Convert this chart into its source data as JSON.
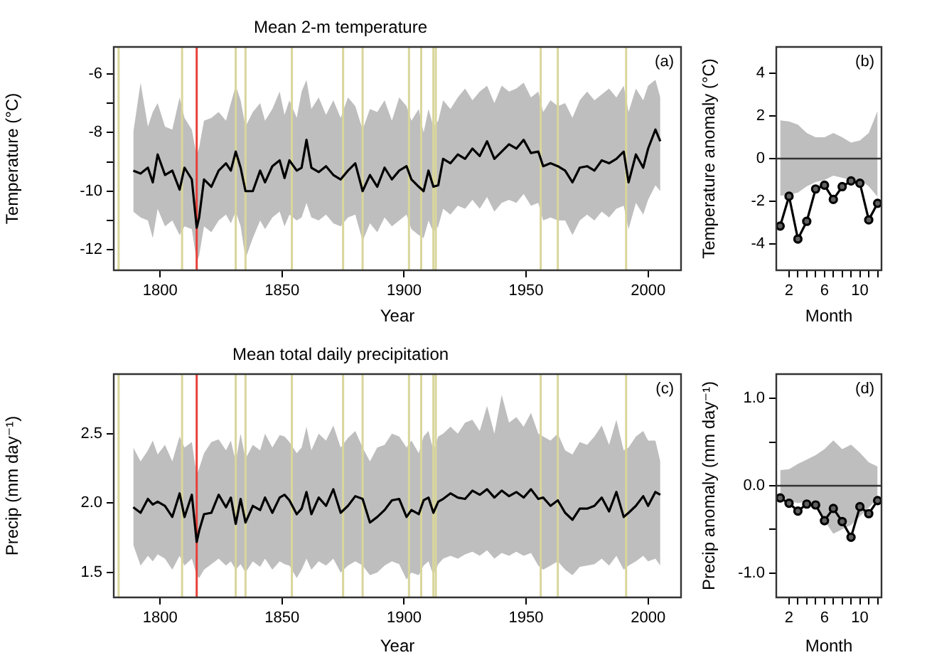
{
  "chart_data": [
    {
      "type": "line",
      "title": "Mean 2-m temperature",
      "xlabel": "Year",
      "ylabel": "Temperature (°C)",
      "xlim": [
        1781,
        2013.5
      ],
      "xticks": [
        1800,
        1850,
        1900,
        1950,
        2000
      ],
      "ylim": [
        -12.7,
        -5.08
      ],
      "yticks": [
        -12,
        {
          "value": -11,
          "label": null
        },
        -10,
        {
          "value": -9,
          "label": null
        },
        -8,
        {
          "value": -7,
          "label": null
        },
        -6
      ],
      "marker": "none",
      "annotations": [
        "(a)"
      ],
      "ref_lines": [
        {
          "axis": "x",
          "value": 1783,
          "color": "#d9d69c"
        },
        {
          "axis": "x",
          "value": 1809,
          "color": "#d9d69c"
        },
        {
          "axis": "x",
          "value": 1815,
          "color": "#e8403a"
        },
        {
          "axis": "x",
          "value": 1831,
          "color": "#d9d69c"
        },
        {
          "axis": "x",
          "value": 1835,
          "color": "#d9d69c"
        },
        {
          "axis": "x",
          "value": 1854,
          "color": "#d9d69c"
        },
        {
          "axis": "x",
          "value": 1875,
          "color": "#d9d69c"
        },
        {
          "axis": "x",
          "value": 1883,
          "color": "#d9d69c"
        },
        {
          "axis": "x",
          "value": 1902,
          "color": "#d9d69c"
        },
        {
          "axis": "x",
          "value": 1907,
          "color": "#d9d69c"
        },
        {
          "axis": "x",
          "value": 1912,
          "color": "#d9d69c"
        },
        {
          "axis": "x",
          "value": 1913,
          "color": "#d9d69c"
        },
        {
          "axis": "x",
          "value": 1956,
          "color": "#d9d69c"
        },
        {
          "axis": "x",
          "value": 1963,
          "color": "#d9d69c"
        },
        {
          "axis": "x",
          "value": 1991,
          "color": "#d9d69c"
        }
      ],
      "series": [
        {
          "color": "#000000",
          "x": [
            1789,
            1792,
            1795,
            1797,
            1799,
            1802,
            1805,
            1808,
            1810,
            1813,
            1815,
            1816,
            1818,
            1821,
            1824,
            1827,
            1829,
            1831,
            1833,
            1835,
            1838,
            1841,
            1843,
            1846,
            1849,
            1851,
            1853,
            1856,
            1858,
            1860,
            1862,
            1865,
            1868,
            1871,
            1874,
            1877,
            1880,
            1883,
            1886,
            1889,
            1892,
            1895,
            1898,
            1901,
            1903,
            1906,
            1908,
            1910,
            1912,
            1914,
            1916,
            1919,
            1922,
            1925,
            1928,
            1931,
            1934,
            1937,
            1940,
            1943,
            1946,
            1949,
            1952,
            1955,
            1957,
            1960,
            1963,
            1966,
            1969,
            1972,
            1975,
            1978,
            1981,
            1984,
            1987,
            1990,
            1992,
            1995,
            1998,
            2000,
            2003,
            2005
          ],
          "values": [
            -9.3,
            -9.4,
            -9.2,
            -9.7,
            -8.75,
            -9.45,
            -9.3,
            -9.95,
            -9.2,
            -9.6,
            -11.25,
            -10.9,
            -9.6,
            -9.85,
            -9.3,
            -9.05,
            -9.3,
            -8.65,
            -9.2,
            -10.0,
            -10.0,
            -9.3,
            -9.7,
            -9.15,
            -8.95,
            -9.55,
            -8.95,
            -9.3,
            -9.2,
            -8.25,
            -9.2,
            -9.35,
            -9.15,
            -9.45,
            -9.6,
            -9.3,
            -9.05,
            -10.0,
            -9.45,
            -9.85,
            -9.2,
            -9.6,
            -9.3,
            -9.15,
            -9.6,
            -9.85,
            -10.0,
            -9.3,
            -9.85,
            -9.8,
            -8.9,
            -9.05,
            -8.75,
            -8.9,
            -8.55,
            -8.8,
            -8.3,
            -8.9,
            -8.65,
            -8.4,
            -8.55,
            -8.25,
            -8.7,
            -8.65,
            -9.15,
            -9.05,
            -9.15,
            -9.3,
            -9.7,
            -9.2,
            -9.15,
            -9.3,
            -8.95,
            -9.05,
            -8.9,
            -8.65,
            -9.7,
            -8.75,
            -9.2,
            -8.55,
            -7.9,
            -8.3
          ],
          "upper": [
            -8.0,
            -6.3,
            -7.8,
            -7.3,
            -7.0,
            -7.8,
            -7.9,
            -6.8,
            -7.5,
            -7.9,
            -8.8,
            -8.5,
            -7.6,
            -7.5,
            -7.3,
            -7.6,
            -7.0,
            -6.4,
            -6.9,
            -7.8,
            -7.3,
            -7.0,
            -7.6,
            -7.2,
            -6.6,
            -7.4,
            -6.9,
            -7.5,
            -6.6,
            -6.2,
            -7.2,
            -6.8,
            -7.4,
            -6.9,
            -7.5,
            -6.8,
            -7.1,
            -7.9,
            -7.2,
            -7.3,
            -6.9,
            -7.6,
            -6.8,
            -7.1,
            -7.6,
            -7.2,
            -8.0,
            -7.2,
            -7.8,
            -7.6,
            -6.9,
            -7.2,
            -6.8,
            -6.5,
            -6.9,
            -6.6,
            -6.4,
            -7.0,
            -6.4,
            -6.6,
            -6.5,
            -6.3,
            -6.8,
            -6.6,
            -7.3,
            -6.9,
            -7.1,
            -7.0,
            -7.5,
            -6.9,
            -6.6,
            -6.9,
            -6.7,
            -6.5,
            -6.8,
            -6.4,
            -7.3,
            -6.5,
            -6.9,
            -6.4,
            -6.2,
            -6.8
          ],
          "lower": [
            -10.7,
            -10.9,
            -11.0,
            -11.6,
            -10.6,
            -11.2,
            -11.0,
            -11.5,
            -11.2,
            -11.3,
            -12.4,
            -12.2,
            -11.2,
            -11.4,
            -11.0,
            -10.8,
            -11.1,
            -10.7,
            -11.2,
            -12.3,
            -11.6,
            -11.0,
            -11.3,
            -10.9,
            -10.7,
            -11.2,
            -10.8,
            -11.0,
            -10.9,
            -10.4,
            -10.9,
            -11.0,
            -10.8,
            -11.1,
            -11.2,
            -10.9,
            -10.8,
            -11.7,
            -11.1,
            -11.4,
            -10.9,
            -11.2,
            -11.0,
            -10.8,
            -11.3,
            -11.5,
            -11.6,
            -11.0,
            -11.4,
            -11.2,
            -10.6,
            -10.8,
            -10.5,
            -10.6,
            -10.3,
            -10.6,
            -10.2,
            -10.7,
            -10.4,
            -10.3,
            -10.4,
            -10.1,
            -10.5,
            -10.4,
            -11.0,
            -10.9,
            -11.0,
            -11.0,
            -11.5,
            -11.0,
            -10.8,
            -11.0,
            -10.7,
            -10.9,
            -10.6,
            -10.5,
            -11.3,
            -10.4,
            -10.8,
            -10.3,
            -9.8,
            -10.0
          ]
        }
      ]
    },
    {
      "type": "line",
      "xlabel": "Month",
      "ylabel": "Temperature anomaly (°C)",
      "xlim": [
        0.56,
        12.44
      ],
      "xticks": [
        2,
        {
          "value": 3,
          "label": null
        },
        {
          "value": 4,
          "label": null
        },
        {
          "value": 5,
          "label": null
        },
        6,
        {
          "value": 7,
          "label": null
        },
        {
          "value": 8,
          "label": null
        },
        {
          "value": 9,
          "label": null
        },
        10,
        {
          "value": 11,
          "label": null
        },
        {
          "value": 12,
          "label": null
        }
      ],
      "ylim": [
        -5.25,
        5.25
      ],
      "yticks": [
        -4,
        -2,
        0,
        2,
        4
      ],
      "marker": "circle",
      "annotations": [
        "(b)"
      ],
      "ref_lines": [
        {
          "axis": "y",
          "value": 0,
          "color": "#333333"
        }
      ],
      "series": [
        {
          "color": "#000000",
          "x": [
            1,
            2,
            3,
            4,
            5,
            6,
            7,
            8,
            9,
            10,
            11,
            12
          ],
          "values": [
            -3.17,
            -1.77,
            -3.78,
            -2.95,
            -1.43,
            -1.25,
            -1.92,
            -1.32,
            -1.05,
            -1.16,
            -2.88,
            -2.1
          ],
          "upper": [
            1.8,
            1.75,
            1.6,
            1.2,
            1.0,
            1.0,
            1.2,
            1.0,
            0.75,
            0.85,
            1.2,
            2.25
          ],
          "lower": [
            -1.75,
            -1.7,
            -1.6,
            -1.3,
            -1.1,
            -1.0,
            -0.8,
            -0.9,
            -1.0,
            -1.0,
            -1.3,
            -1.8
          ]
        }
      ]
    },
    {
      "type": "line",
      "title": "Mean total daily precipitation",
      "xlabel": "Year",
      "ylabel": "Precip (mm day⁻¹)",
      "xlim": [
        1781,
        2013.5
      ],
      "xticks": [
        1800,
        1850,
        1900,
        1950,
        2000
      ],
      "ylim": [
        1.32,
        2.93
      ],
      "yticks": [
        1.5,
        {
          "value": 2,
          "label": "2.0"
        },
        2.5
      ],
      "marker": "none",
      "annotations": [
        "(c)"
      ],
      "ref_lines": [
        {
          "axis": "x",
          "value": 1783,
          "color": "#d9d69c"
        },
        {
          "axis": "x",
          "value": 1809,
          "color": "#d9d69c"
        },
        {
          "axis": "x",
          "value": 1815,
          "color": "#e8403a"
        },
        {
          "axis": "x",
          "value": 1831,
          "color": "#d9d69c"
        },
        {
          "axis": "x",
          "value": 1835,
          "color": "#d9d69c"
        },
        {
          "axis": "x",
          "value": 1854,
          "color": "#d9d69c"
        },
        {
          "axis": "x",
          "value": 1875,
          "color": "#d9d69c"
        },
        {
          "axis": "x",
          "value": 1883,
          "color": "#d9d69c"
        },
        {
          "axis": "x",
          "value": 1902,
          "color": "#d9d69c"
        },
        {
          "axis": "x",
          "value": 1907,
          "color": "#d9d69c"
        },
        {
          "axis": "x",
          "value": 1912,
          "color": "#d9d69c"
        },
        {
          "axis": "x",
          "value": 1913,
          "color": "#d9d69c"
        },
        {
          "axis": "x",
          "value": 1956,
          "color": "#d9d69c"
        },
        {
          "axis": "x",
          "value": 1963,
          "color": "#d9d69c"
        },
        {
          "axis": "x",
          "value": 1991,
          "color": "#d9d69c"
        }
      ],
      "series": [
        {
          "color": "#000000",
          "x": [
            1789,
            1792,
            1795,
            1797,
            1799,
            1802,
            1805,
            1808,
            1810,
            1813,
            1815,
            1816,
            1818,
            1821,
            1824,
            1827,
            1829,
            1831,
            1833,
            1835,
            1838,
            1841,
            1843,
            1846,
            1849,
            1851,
            1853,
            1856,
            1858,
            1860,
            1862,
            1865,
            1868,
            1871,
            1874,
            1877,
            1880,
            1883,
            1886,
            1889,
            1892,
            1895,
            1898,
            1901,
            1903,
            1906,
            1908,
            1910,
            1912,
            1914,
            1916,
            1919,
            1922,
            1925,
            1928,
            1931,
            1934,
            1937,
            1940,
            1943,
            1946,
            1949,
            1952,
            1955,
            1957,
            1960,
            1963,
            1966,
            1969,
            1972,
            1975,
            1978,
            1981,
            1984,
            1987,
            1990,
            1992,
            1995,
            1998,
            2000,
            2003,
            2005
          ],
          "values": [
            1.97,
            1.93,
            2.03,
            1.99,
            2.01,
            1.98,
            1.9,
            2.07,
            1.9,
            2.06,
            1.72,
            1.8,
            1.92,
            1.93,
            2.06,
            1.97,
            2.04,
            1.85,
            2.03,
            1.86,
            1.98,
            1.95,
            2.04,
            1.93,
            2.04,
            2.06,
            2.02,
            1.92,
            1.96,
            2.08,
            1.92,
            2.04,
            1.98,
            2.1,
            1.93,
            1.98,
            2.05,
            2.03,
            1.86,
            1.9,
            1.95,
            2.02,
            2.03,
            1.9,
            1.95,
            1.92,
            2.02,
            2.04,
            1.93,
            2.01,
            2.03,
            2.07,
            2.04,
            2.03,
            2.09,
            2.06,
            2.1,
            2.04,
            2.09,
            2.05,
            2.08,
            2.04,
            2.1,
            2.03,
            2.04,
            1.98,
            2.02,
            1.93,
            1.88,
            1.96,
            1.96,
            1.98,
            2.04,
            1.94,
            2.08,
            1.9,
            1.93,
            1.98,
            2.05,
            1.98,
            2.08,
            2.06
          ],
          "upper": [
            2.4,
            2.3,
            2.38,
            2.45,
            2.35,
            2.42,
            2.3,
            2.48,
            2.4,
            2.44,
            2.2,
            2.25,
            2.36,
            2.44,
            2.46,
            2.38,
            2.45,
            2.3,
            2.5,
            2.32,
            2.42,
            2.38,
            2.5,
            2.4,
            2.49,
            2.48,
            2.44,
            2.36,
            2.4,
            2.55,
            2.38,
            2.5,
            2.45,
            2.56,
            2.4,
            2.47,
            2.52,
            2.4,
            2.3,
            2.4,
            2.42,
            2.5,
            2.48,
            2.4,
            2.45,
            2.36,
            2.48,
            2.52,
            2.38,
            2.48,
            2.5,
            2.55,
            2.5,
            2.58,
            2.6,
            2.52,
            2.7,
            2.5,
            2.78,
            2.58,
            2.62,
            2.55,
            2.65,
            2.5,
            2.48,
            2.45,
            2.5,
            2.38,
            2.35,
            2.44,
            2.42,
            2.48,
            2.56,
            2.42,
            2.6,
            2.38,
            2.4,
            2.48,
            2.52,
            2.45,
            2.45,
            2.3
          ],
          "lower": [
            1.7,
            1.55,
            1.62,
            1.58,
            1.63,
            1.6,
            1.52,
            1.62,
            1.55,
            1.6,
            1.48,
            1.46,
            1.52,
            1.56,
            1.6,
            1.55,
            1.58,
            1.52,
            1.56,
            1.5,
            1.58,
            1.54,
            1.6,
            1.52,
            1.58,
            1.56,
            1.55,
            1.46,
            1.52,
            1.6,
            1.52,
            1.58,
            1.55,
            1.6,
            1.5,
            1.55,
            1.58,
            1.55,
            1.48,
            1.5,
            1.55,
            1.58,
            1.56,
            1.45,
            1.5,
            1.48,
            1.55,
            1.58,
            1.48,
            1.56,
            1.6,
            1.62,
            1.6,
            1.63,
            1.65,
            1.62,
            1.66,
            1.6,
            1.64,
            1.62,
            1.65,
            1.62,
            1.64,
            1.55,
            1.52,
            1.55,
            1.58,
            1.52,
            1.48,
            1.54,
            1.55,
            1.56,
            1.6,
            1.55,
            1.62,
            1.52,
            1.55,
            1.58,
            1.62,
            1.58,
            1.6,
            1.55
          ]
        }
      ]
    },
    {
      "type": "line",
      "xlabel": "Month",
      "ylabel": "Precip anomaly (mm day⁻¹)",
      "xlim": [
        0.56,
        12.44
      ],
      "xticks": [
        2,
        {
          "value": 3,
          "label": null
        },
        {
          "value": 4,
          "label": null
        },
        {
          "value": 5,
          "label": null
        },
        6,
        {
          "value": 7,
          "label": null
        },
        {
          "value": 8,
          "label": null
        },
        {
          "value": 9,
          "label": null
        },
        10,
        {
          "value": 11,
          "label": null
        },
        {
          "value": 12,
          "label": null
        }
      ],
      "ylim": [
        -1.28,
        1.28
      ],
      "yticks": [
        {
          "value": -1,
          "label": "-1.0"
        },
        {
          "value": -0.5,
          "label": null
        },
        {
          "value": 0,
          "label": "0.0"
        },
        {
          "value": 0.5,
          "label": null
        },
        {
          "value": 1,
          "label": "1.0"
        }
      ],
      "marker": "circle",
      "annotations": [
        "(d)"
      ],
      "ref_lines": [
        {
          "axis": "y",
          "value": 0,
          "color": "#333333"
        }
      ],
      "series": [
        {
          "color": "#000000",
          "x": [
            1,
            2,
            3,
            4,
            5,
            6,
            7,
            8,
            9,
            10,
            11,
            12
          ],
          "values": [
            -0.14,
            -0.2,
            -0.29,
            -0.21,
            -0.22,
            -0.4,
            -0.26,
            -0.41,
            -0.59,
            -0.24,
            -0.32,
            -0.17
          ],
          "upper": [
            0.18,
            0.19,
            0.25,
            0.3,
            0.35,
            0.42,
            0.52,
            0.42,
            0.47,
            0.38,
            0.27,
            0.22
          ],
          "lower": [
            -0.13,
            -0.17,
            -0.2,
            -0.18,
            -0.2,
            -0.4,
            -0.55,
            -0.5,
            -0.45,
            -0.35,
            -0.25,
            -0.15
          ]
        }
      ]
    }
  ]
}
